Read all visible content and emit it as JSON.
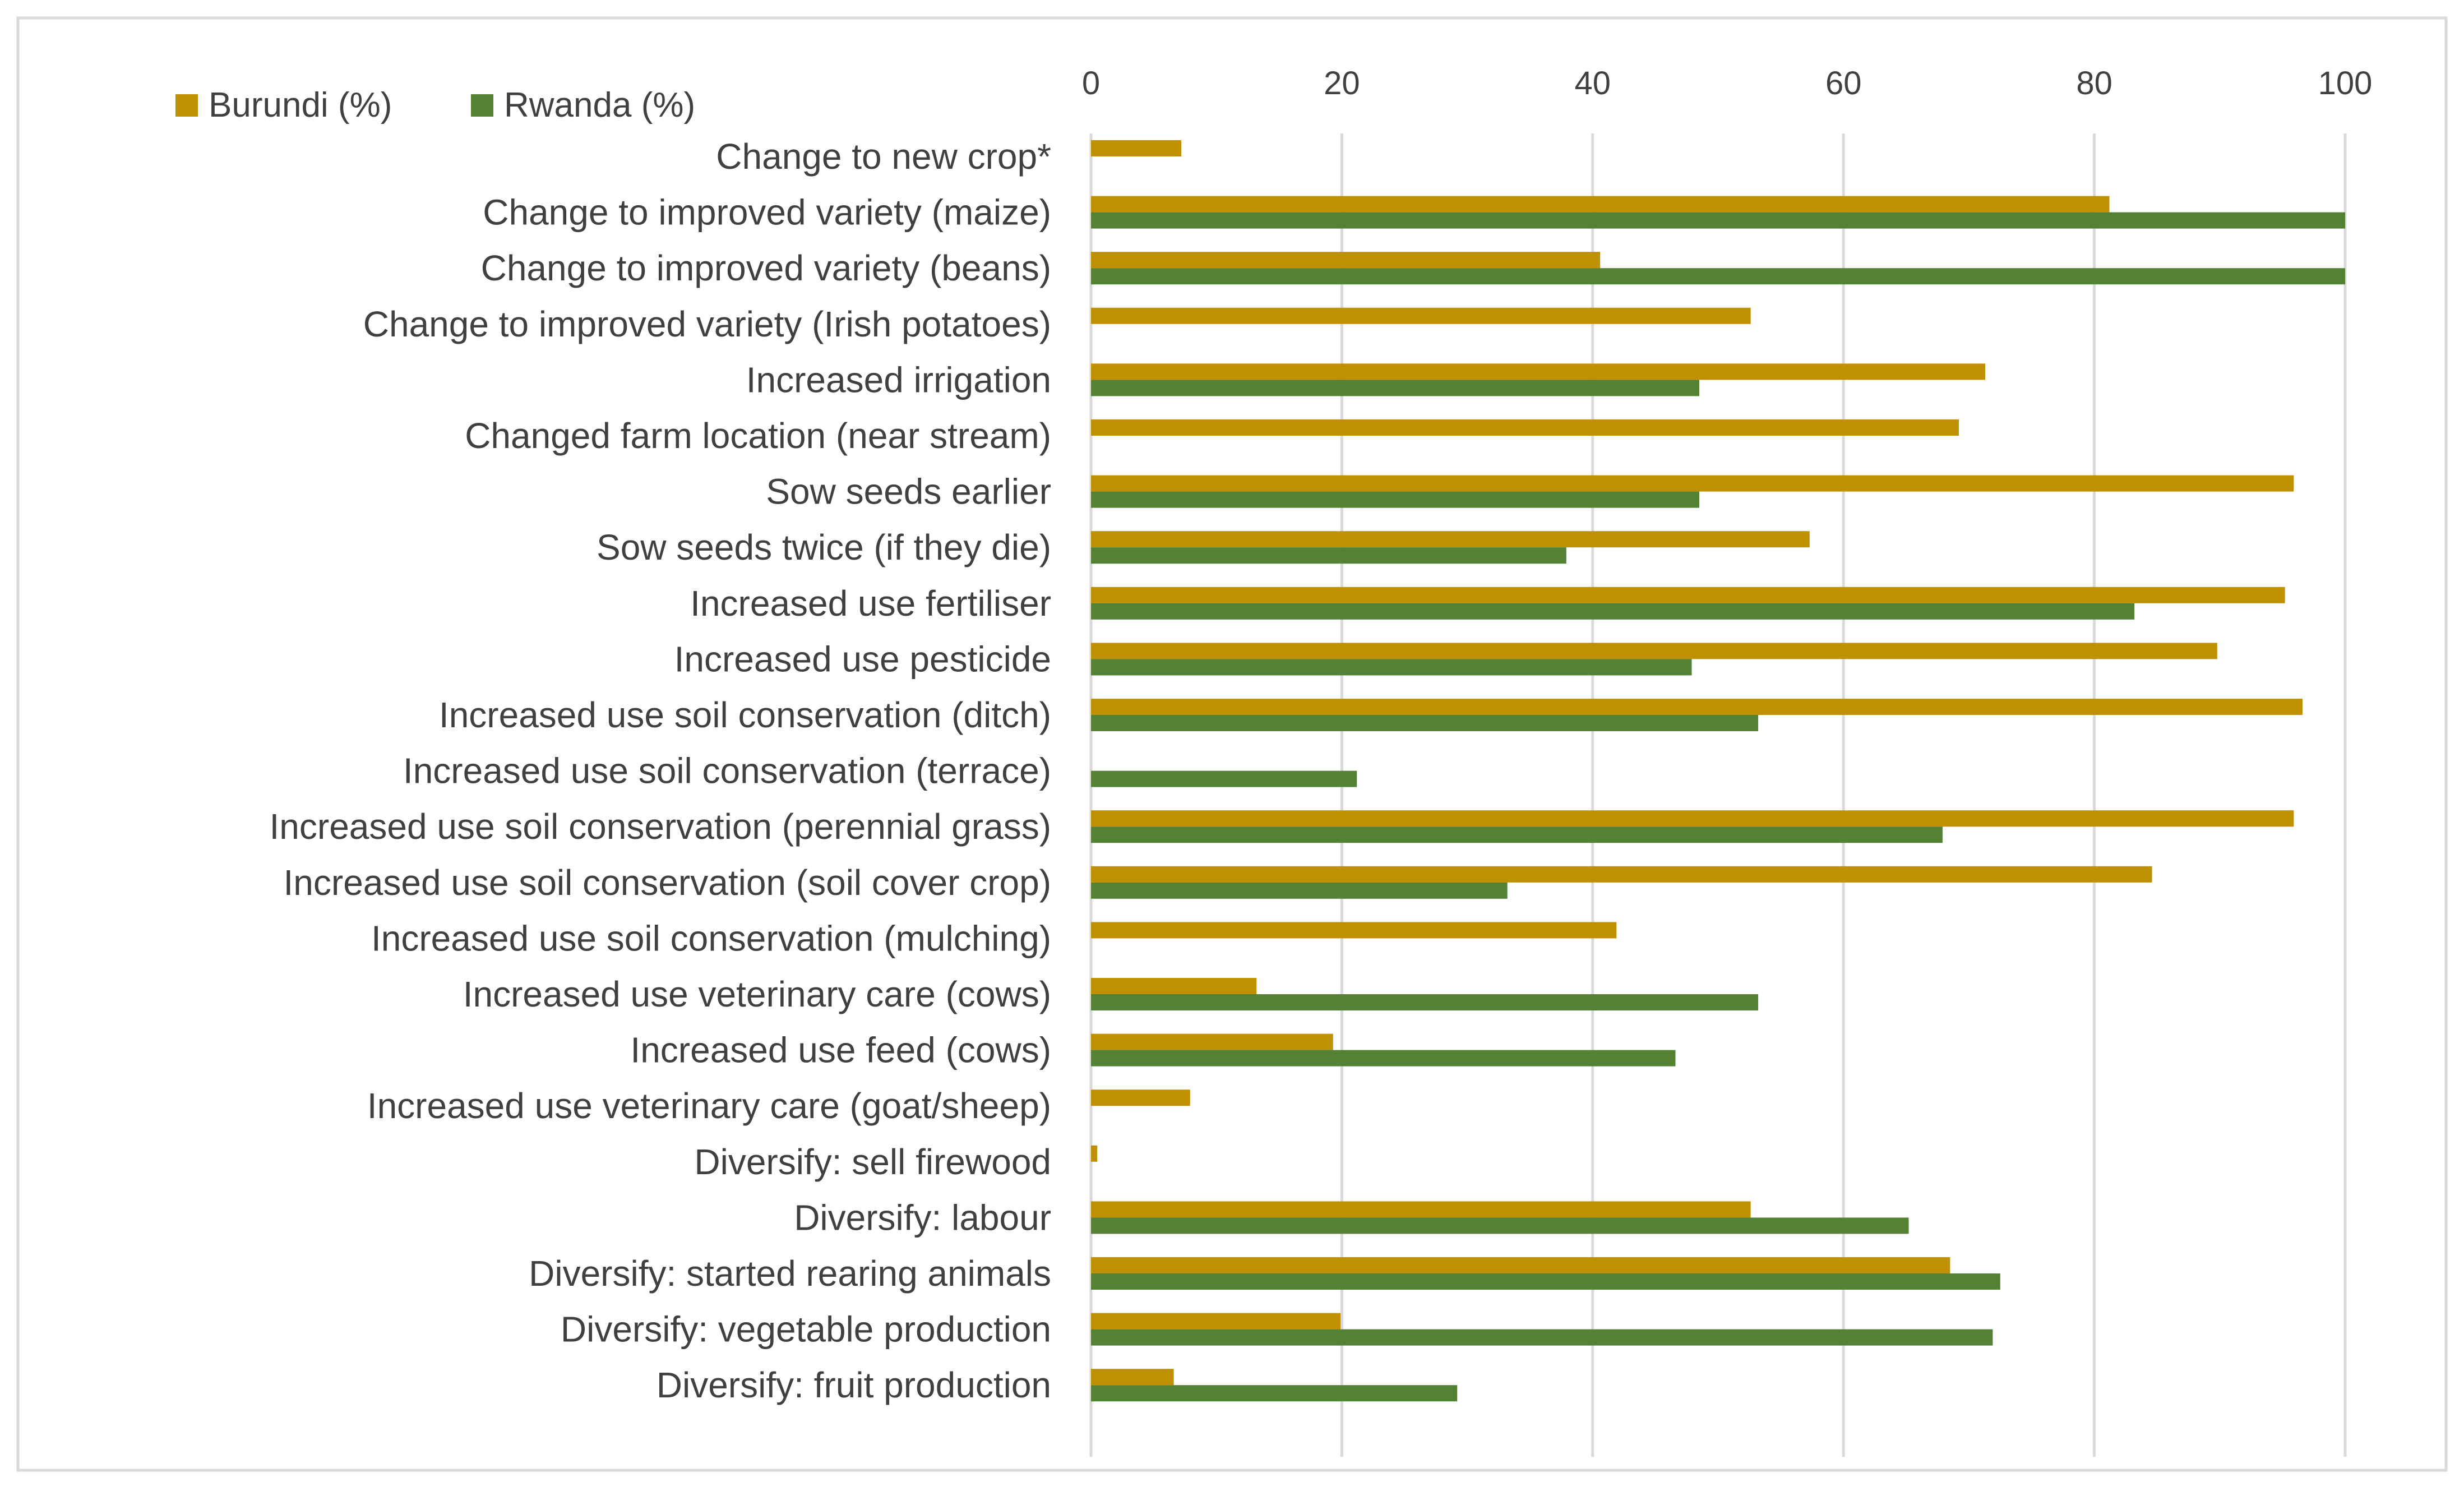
{
  "chart_data": {
    "type": "bar",
    "orientation": "horizontal",
    "title": "",
    "xlabel": "",
    "ylabel": "",
    "xlim": [
      0,
      100
    ],
    "xticks": [
      "0",
      "20",
      "40",
      "60",
      "80",
      "100"
    ],
    "grid": true,
    "legend_position": "top-left",
    "categories": [
      "Change to new crop*",
      "Change to improved variety (maize)",
      "Change to improved variety (beans)",
      "Change to improved variety (Irish potatoes)",
      "Increased irrigation",
      "Changed farm location (near stream)",
      "Sow seeds earlier",
      "Sow seeds twice (if they die)",
      "Increased use fertiliser",
      "Increased use pesticide",
      "Increased use soil conservation (ditch)",
      "Increased use soil conservation (terrace)",
      "Increased use soil conservation (perennial grass)",
      "Increased use soil conservation (soil cover crop)",
      "Increased use soil conservation (mulching)",
      "Increased use veterinary care (cows)",
      "Increased use feed (cows)",
      "Increased use veterinary care (goat/sheep)",
      "Diversify: sell firewood",
      "Diversify: labour",
      "Diversify: started rearing animals",
      "Diversify: vegetable production",
      "Diversify: fruit production"
    ],
    "series": [
      {
        "name": "Burundi (%)",
        "color": "#BF9000",
        "values": [
          7.2,
          81.2,
          40.6,
          52.6,
          71.3,
          69.2,
          95.9,
          57.3,
          95.2,
          89.8,
          96.6,
          0,
          95.9,
          84.6,
          41.9,
          13.2,
          19.3,
          7.9,
          0.5,
          52.6,
          68.5,
          19.9,
          6.6
        ]
      },
      {
        "name": "Rwanda (%)",
        "color": "#548235",
        "values": [
          0,
          100,
          100,
          0,
          48.5,
          0,
          48.5,
          37.9,
          83.2,
          47.9,
          53.2,
          21.2,
          67.9,
          33.2,
          0,
          53.2,
          46.6,
          0,
          0,
          65.2,
          72.5,
          71.9,
          29.2
        ]
      }
    ]
  }
}
